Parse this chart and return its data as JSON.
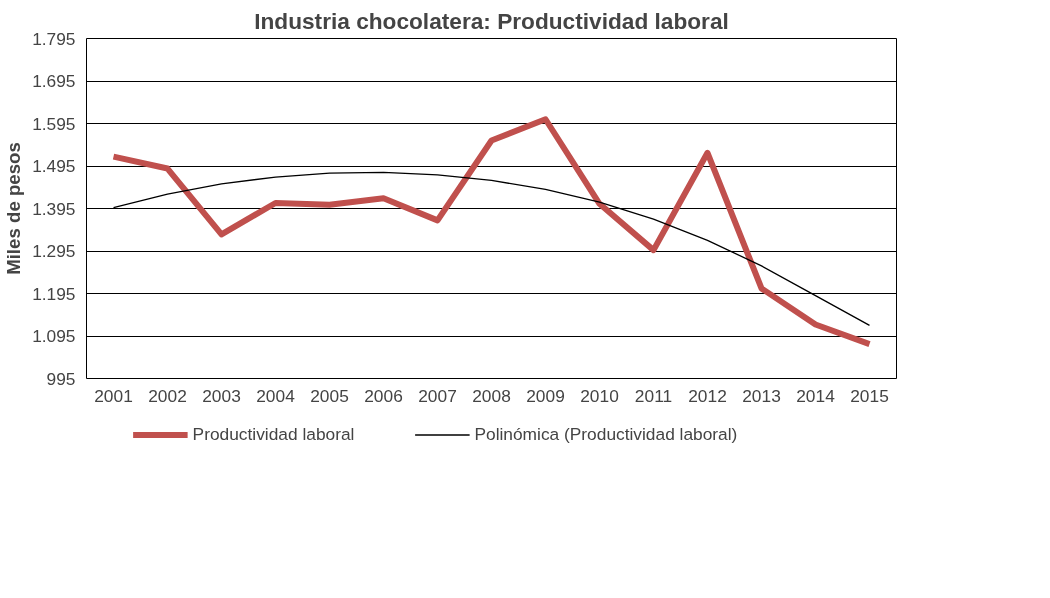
{
  "chart_data": {
    "type": "line",
    "title": "Industria chocolatera: Productividad laboral",
    "ylabel": "Miles de pesos",
    "categories": [
      "2001",
      "2002",
      "2003",
      "2004",
      "2005",
      "2006",
      "2007",
      "2008",
      "2009",
      "2010",
      "2011",
      "2012",
      "2013",
      "2014",
      "2015"
    ],
    "series": [
      {
        "name": "Productividad laboral",
        "color": "#c0504d",
        "values": [
          1517,
          1489,
          1334,
          1408,
          1404,
          1419,
          1367,
          1555,
          1605,
          1406,
          1297,
          1526,
          1207,
          1122,
          1076
        ]
      },
      {
        "name": "Polinómica (Productividad laboral)",
        "color": "#000000",
        "values": [
          1397,
          1429,
          1453,
          1469,
          1478,
          1480,
          1474,
          1461,
          1440,
          1410,
          1370,
          1320,
          1260,
          1190,
          1120
        ]
      }
    ],
    "ylim": [
      995,
      1795
    ],
    "yticks": [
      {
        "value": 995,
        "label": "995"
      },
      {
        "value": 1095,
        "label": "1.095"
      },
      {
        "value": 1195,
        "label": "1.195"
      },
      {
        "value": 1295,
        "label": "1.295"
      },
      {
        "value": 1395,
        "label": "1.395"
      },
      {
        "value": 1495,
        "label": "1.495"
      },
      {
        "value": 1595,
        "label": "1.595"
      },
      {
        "value": 1695,
        "label": "1.695"
      },
      {
        "value": 1795,
        "label": "1.795"
      }
    ],
    "grid": "y",
    "legend": "bottom",
    "marker": "none",
    "line_style": "solid"
  }
}
